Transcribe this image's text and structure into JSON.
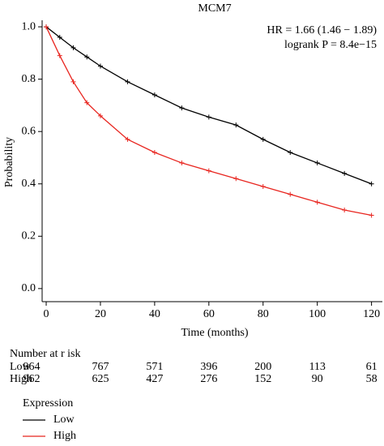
{
  "chart_data": {
    "type": "line",
    "title": "MCM7",
    "xlabel": "Time (months)",
    "ylabel": "Probability",
    "annotations": [
      "HR = 1.66 (1.46 − 1.89)",
      "logrank P = 8.4e−15"
    ],
    "x": [
      0,
      5,
      10,
      15,
      20,
      30,
      40,
      50,
      60,
      70,
      80,
      90,
      100,
      110,
      120
    ],
    "series": [
      {
        "name": "Low",
        "color": "#000000",
        "values": [
          1,
          0.96,
          0.92,
          0.885,
          0.85,
          0.79,
          0.74,
          0.69,
          0.655,
          0.625,
          0.57,
          0.52,
          0.48,
          0.44,
          0.4
        ]
      },
      {
        "name": "High",
        "color": "#e8251f",
        "values": [
          1,
          0.89,
          0.79,
          0.71,
          0.66,
          0.57,
          0.52,
          0.48,
          0.45,
          0.42,
          0.39,
          0.36,
          0.33,
          0.3,
          0.28
        ]
      }
    ],
    "xlim": [
      -1.5,
      124
    ],
    "ylim": [
      -0.05,
      1.025
    ],
    "xticks": [
      0,
      20,
      40,
      60,
      80,
      100,
      120
    ],
    "yticks": [
      {
        "value": 0,
        "label": "0.0"
      },
      0.2,
      0.4,
      0.6,
      0.8,
      {
        "value": 1,
        "label": "1.0"
      }
    ],
    "legend_title": "Expression",
    "legend": "bottom-left",
    "risk_table": {
      "title": "Number at r isk",
      "rows": [
        {
          "name": "Low",
          "color": "#000000",
          "values": [
            964,
            767,
            571,
            396,
            200,
            113,
            61
          ]
        },
        {
          "name": "High",
          "color": "#e8251f",
          "values": [
            962,
            625,
            427,
            276,
            152,
            90,
            58
          ]
        }
      ]
    }
  }
}
